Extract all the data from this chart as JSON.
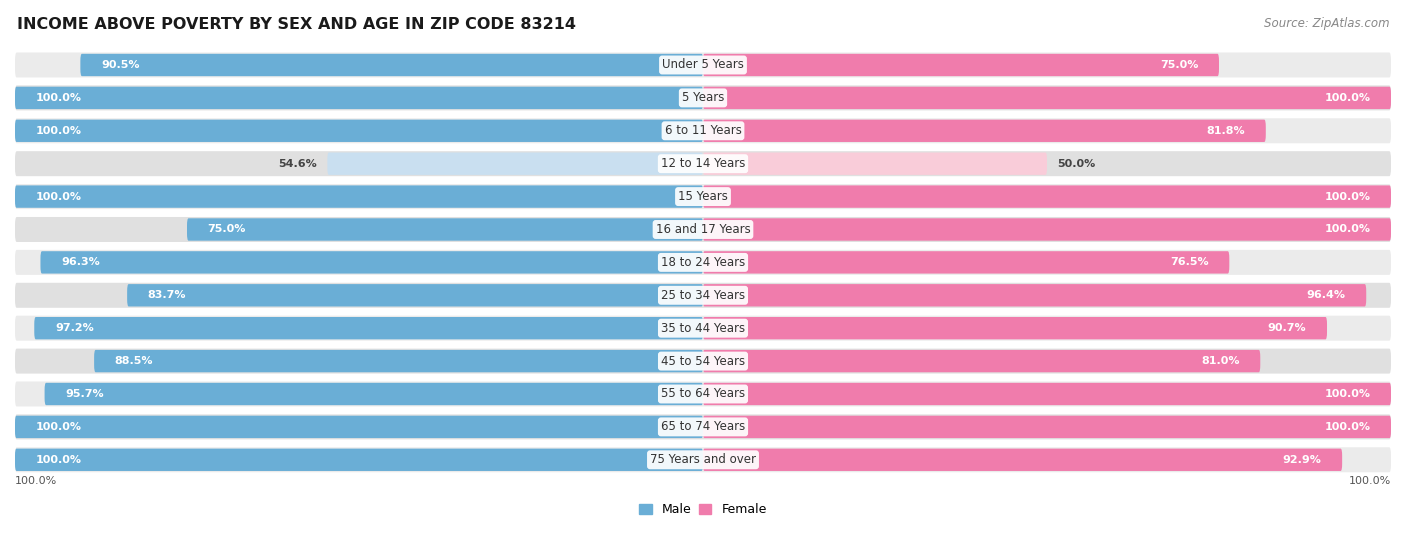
{
  "title": "INCOME ABOVE POVERTY BY SEX AND AGE IN ZIP CODE 83214",
  "source": "Source: ZipAtlas.com",
  "categories": [
    "Under 5 Years",
    "5 Years",
    "6 to 11 Years",
    "12 to 14 Years",
    "15 Years",
    "16 and 17 Years",
    "18 to 24 Years",
    "25 to 34 Years",
    "35 to 44 Years",
    "45 to 54 Years",
    "55 to 64 Years",
    "65 to 74 Years",
    "75 Years and over"
  ],
  "male_values": [
    90.5,
    100.0,
    100.0,
    54.6,
    100.0,
    75.0,
    96.3,
    83.7,
    97.2,
    88.5,
    95.7,
    100.0,
    100.0
  ],
  "female_values": [
    75.0,
    100.0,
    81.8,
    50.0,
    100.0,
    100.0,
    76.5,
    96.4,
    90.7,
    81.0,
    100.0,
    100.0,
    92.9
  ],
  "male_color_full": "#6aaed6",
  "female_color_full": "#f07cac",
  "male_color_light": "#c9dff0",
  "female_color_light": "#f9ccd9",
  "row_bg_color": "#e8e8e8",
  "row_bg_even": "#f0f0f0",
  "row_bg_odd": "#e4e4e4",
  "background_color": "#ffffff",
  "title_fontsize": 11.5,
  "label_fontsize": 8.5,
  "value_fontsize": 8.0,
  "source_fontsize": 8.5
}
